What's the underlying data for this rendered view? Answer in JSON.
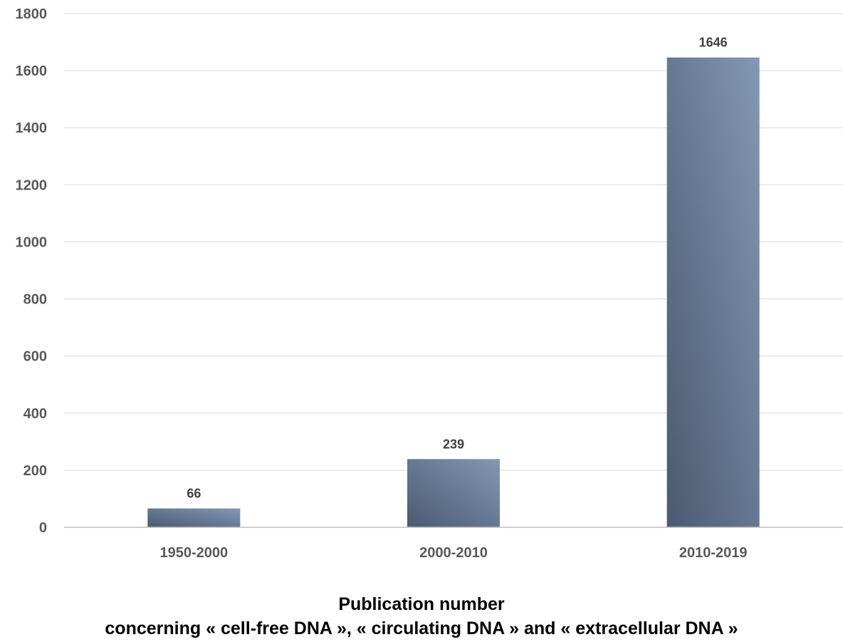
{
  "chart_data": {
    "type": "bar",
    "categories": [
      "1950-2000",
      "2000-2010",
      "2010-2019"
    ],
    "values": [
      66,
      239,
      1646
    ],
    "data_labels": [
      "66",
      "239",
      "1646"
    ],
    "ylim": [
      0,
      1800
    ],
    "yticks": [
      0,
      200,
      400,
      600,
      800,
      1000,
      1200,
      1400,
      1600,
      1800
    ],
    "grid": true,
    "legend": "none",
    "caption": {
      "line1": "Publication number",
      "line2": "concerning « cell-free DNA », « circulating DNA » and « extracellular DNA »"
    },
    "colors": {
      "bar_dark": "#4a5a70",
      "bar_light": "#8398b4",
      "tick_text": "#595959",
      "data_label_text": "#404040",
      "gridline": "#d9d9d9",
      "axis": "#bfbfbf"
    }
  }
}
